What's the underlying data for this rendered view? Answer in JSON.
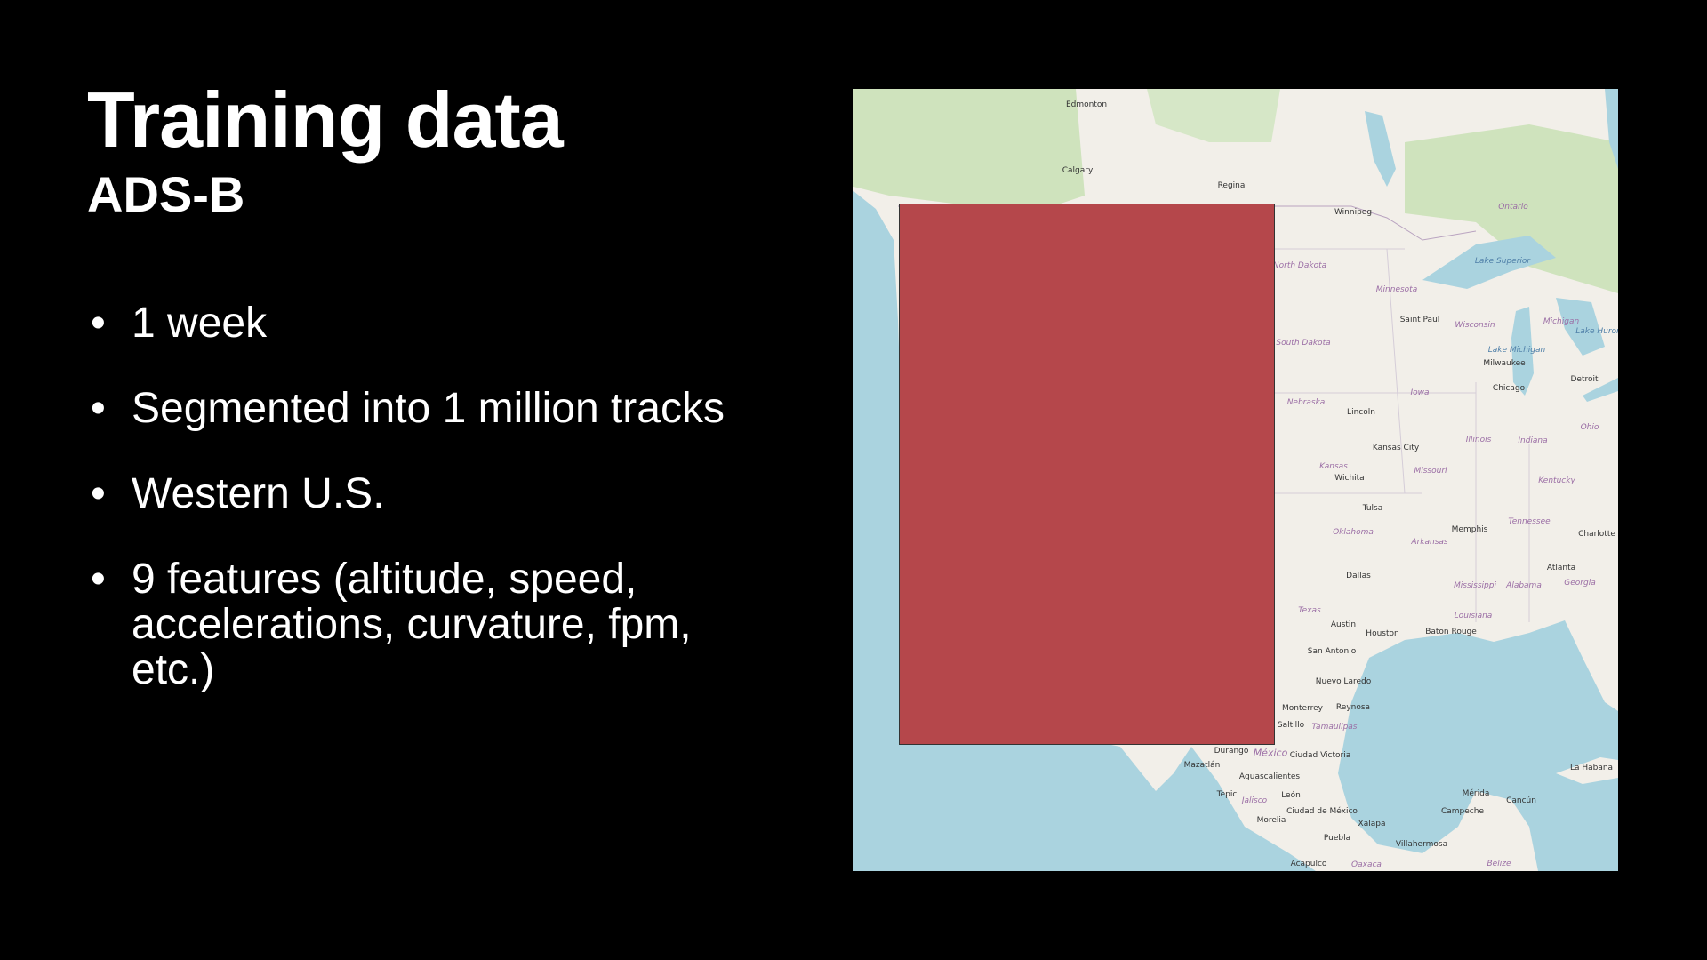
{
  "slide": {
    "title": "Training data",
    "subtitle": "ADS-B",
    "bullet_symbol": "•",
    "bullets": [
      "1 week",
      "Segmented into 1 million tracks",
      "Western U.S.",
      "9 features (altitude, speed, accelerations, curvature, fpm, etc.)"
    ]
  },
  "map": {
    "colors": {
      "land": "#f2efe9",
      "water": "#aad3df",
      "forest": "#c8dfb3",
      "region": "#b5474b"
    },
    "region_label": "",
    "labels": {
      "cities": [
        "Edmonton",
        "Calgary",
        "Regina",
        "Winnipeg",
        "Saint Paul",
        "Milwaukee",
        "Detroit",
        "Chicago",
        "Lincoln",
        "Kansas City",
        "Wichita",
        "Tulsa",
        "Memphis",
        "Charlotte",
        "Atlanta",
        "Dallas",
        "Austin",
        "Houston",
        "Baton Rouge",
        "San Antonio",
        "Nuevo Laredo",
        "Monterrey",
        "Reynosa",
        "Saltillo",
        "Durango",
        "Ciudad Victoria",
        "Mazatlán",
        "Aguascalientes",
        "La Habana",
        "Tepic",
        "León",
        "Mérida",
        "Cancún",
        "Ciudad de México",
        "Campeche",
        "Morelia",
        "Xalapa",
        "Puebla",
        "Villahermosa",
        "Acapulco"
      ],
      "states": [
        "Ontario",
        "North Dakota",
        "Minnesota",
        "Wisconsin",
        "Michigan",
        "South Dakota",
        "Iowa",
        "Nebraska",
        "Ohio",
        "Illinois",
        "Indiana",
        "Kansas",
        "Missouri",
        "Kentucky",
        "Tennessee",
        "Oklahoma",
        "Arkansas",
        "Mississippi",
        "Alabama",
        "Georgia",
        "Texas",
        "Louisiana",
        "Tamaulipas",
        "México",
        "Jalisco",
        "Oaxaca",
        "Belize"
      ],
      "water": [
        "Lake Superior",
        "Lake Huron",
        "Lake Michigan"
      ]
    }
  }
}
